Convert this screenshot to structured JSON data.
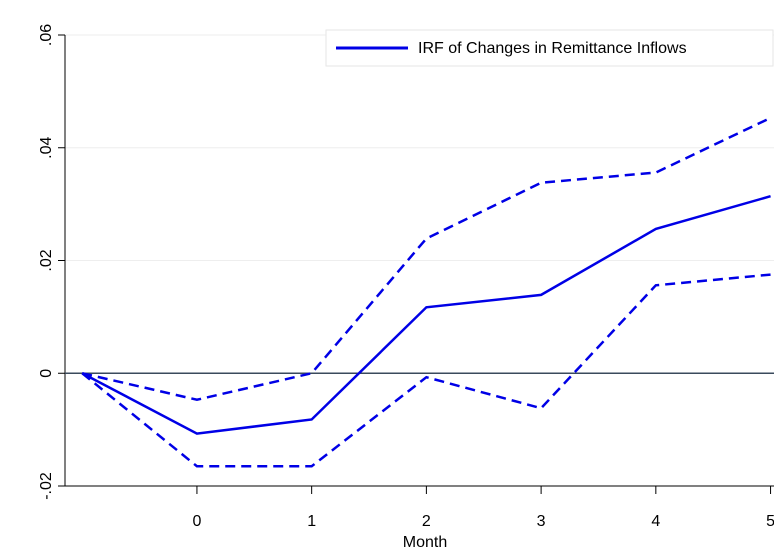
{
  "chart_data": {
    "type": "line",
    "x_label": "Month",
    "x": [
      -1,
      0,
      1,
      2,
      3,
      4,
      5
    ],
    "series": [
      {
        "name": "IRF of Changes in Remittance Inflows",
        "color": "#0000e6",
        "dash": false,
        "values": [
          0,
          -0.0107,
          -0.0082,
          0.0117,
          0.0139,
          0.0256,
          0.0314
        ]
      },
      {
        "color": "#0000e6",
        "dash": true,
        "values": [
          0,
          -0.0047,
          0,
          0.0239,
          0.0338,
          0.0356,
          0.0453
        ]
      },
      {
        "color": "#0000e6",
        "dash": true,
        "values": [
          0,
          -0.0165,
          -0.0165,
          -0.0007,
          -0.0062,
          0.0156,
          0.0175
        ]
      }
    ],
    "xlim": [
      -1.15,
      5.03
    ],
    "xticks": [
      0,
      1,
      2,
      3,
      4,
      5
    ],
    "ylim": [
      -0.02,
      0.06
    ],
    "yticks": [
      {
        "value": -0.02,
        "label": "-.02"
      },
      0,
      {
        "value": 0.02,
        "label": ".02"
      },
      {
        "value": 0.04,
        "label": ".04"
      },
      {
        "value": 0.06,
        "label": ".06"
      }
    ],
    "grid": true,
    "reference_line": 0,
    "reference_color": "#3a4a5c",
    "legend": "top-right"
  }
}
